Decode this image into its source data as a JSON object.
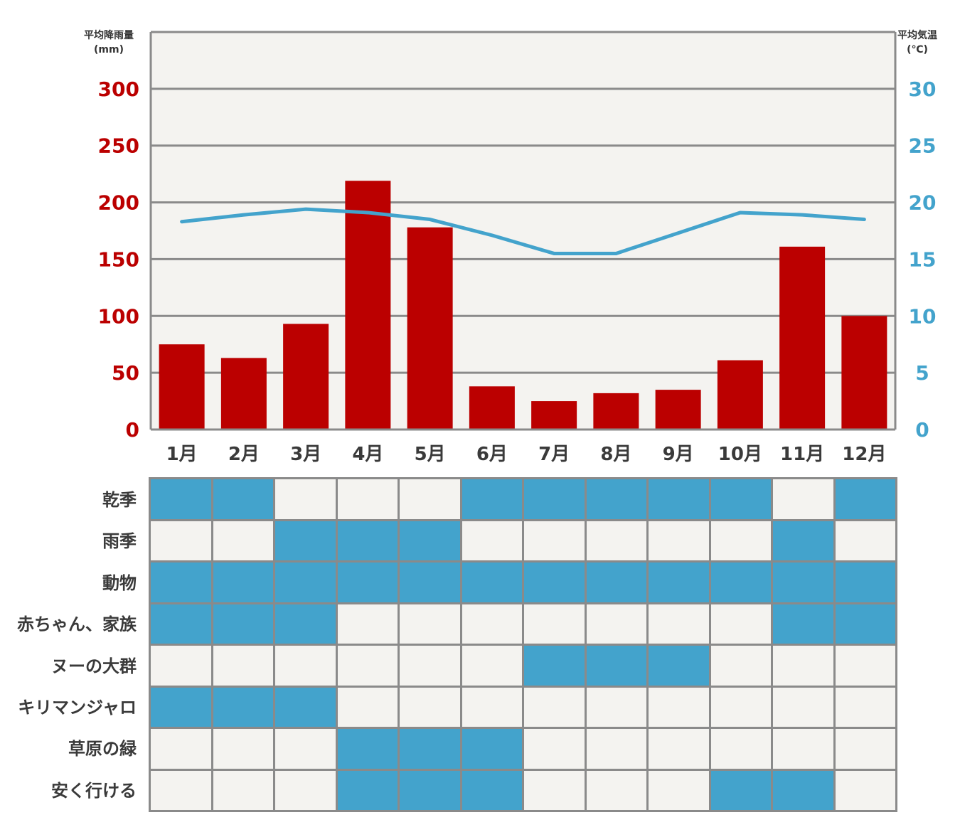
{
  "left_axis_title": {
    "line1": "平均降雨量",
    "line2": "(mm)"
  },
  "right_axis_title": {
    "line1": "平均気温",
    "line2": "(℃)"
  },
  "colors": {
    "rain": "#bb0000",
    "temp": "#43a3cc",
    "left_ticks": "#bb0000",
    "right_ticks": "#43a3cc",
    "plot_bg": "#f4f3f0",
    "grid": "#8a8a8a",
    "cell_on": "#43a3cc",
    "cell_off": "#f4f3f0"
  },
  "chart_data": {
    "type": "bar",
    "categories": [
      "1月",
      "2月",
      "3月",
      "4月",
      "5月",
      "6月",
      "7月",
      "8月",
      "9月",
      "10月",
      "11月",
      "12月"
    ],
    "series": [
      {
        "axis": "left",
        "type": "bar",
        "values": [
          75,
          63,
          93,
          219,
          178,
          38,
          25,
          32,
          35,
          61,
          161,
          100
        ]
      },
      {
        "axis": "right",
        "type": "line",
        "values": [
          18.3,
          18.9,
          19.4,
          19.1,
          18.5,
          17.1,
          15.5,
          15.5,
          17.3,
          19.1,
          18.9,
          18.5
        ]
      }
    ],
    "yleft": {
      "lim": [
        0,
        350
      ],
      "ticks": [
        "0",
        "50",
        "100",
        "150",
        "200",
        "250",
        "300"
      ]
    },
    "yright": {
      "lim": [
        0,
        35
      ],
      "ticks": [
        "0",
        "5",
        "10",
        "15",
        "20",
        "25",
        "30"
      ]
    },
    "grid": true
  },
  "season_table": {
    "rows": [
      {
        "label": "乾季",
        "months": [
          1,
          1,
          0,
          0,
          0,
          1,
          1,
          1,
          1,
          1,
          0,
          1
        ]
      },
      {
        "label": "雨季",
        "months": [
          0,
          0,
          1,
          1,
          1,
          0,
          0,
          0,
          0,
          0,
          1,
          0
        ]
      },
      {
        "label": "動物",
        "months": [
          1,
          1,
          1,
          1,
          1,
          1,
          1,
          1,
          1,
          1,
          1,
          1
        ]
      },
      {
        "label": "赤ちゃん、家族",
        "months": [
          1,
          1,
          1,
          0,
          0,
          0,
          0,
          0,
          0,
          0,
          1,
          1
        ]
      },
      {
        "label": "ヌーの大群",
        "months": [
          0,
          0,
          0,
          0,
          0,
          0,
          1,
          1,
          1,
          0,
          0,
          0
        ]
      },
      {
        "label": "キリマンジャロ",
        "months": [
          1,
          1,
          1,
          0,
          0,
          0,
          0,
          0,
          0,
          0,
          0,
          0
        ]
      },
      {
        "label": "草原の緑",
        "months": [
          0,
          0,
          0,
          1,
          1,
          1,
          0,
          0,
          0,
          0,
          0,
          0
        ]
      },
      {
        "label": "安く行ける",
        "months": [
          0,
          0,
          0,
          1,
          1,
          1,
          0,
          0,
          0,
          1,
          1,
          0
        ]
      }
    ]
  }
}
